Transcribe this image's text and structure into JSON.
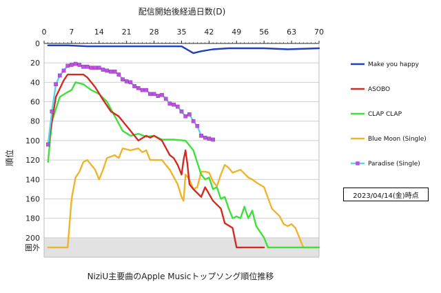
{
  "chart_data": {
    "type": "line",
    "title": "NiziU主要曲のApple Musicトップソング順位推移",
    "xlabel": "配信開始後経過日数(D)",
    "ylabel": "順位",
    "xlim": [
      0,
      70
    ],
    "ylim": [
      0,
      220
    ],
    "x_ticks": [
      "0",
      "7",
      "14",
      "21",
      "28",
      "35",
      "42",
      "49",
      "56",
      "63",
      "70"
    ],
    "y_ticks": [
      "0",
      "20",
      "40",
      "60",
      "80",
      "100",
      "120",
      "140",
      "160",
      "180",
      "200"
    ],
    "y_outside_label": "圏外",
    "y_outside_value": 210,
    "y_inverted": true,
    "x_axis_position": "top",
    "legend_position": "right",
    "series": [
      {
        "name": "Make you happy",
        "color": "#1f3fbf",
        "marker": "none",
        "x": [
          1,
          6,
          11,
          35,
          38,
          40,
          43,
          47,
          52,
          56,
          62,
          70
        ],
        "y": [
          2,
          2,
          3,
          3,
          10,
          8,
          6,
          5,
          5,
          5,
          6,
          5
        ]
      },
      {
        "name": "ASOBO",
        "color": "#d42a22",
        "marker": "none",
        "x": [
          1,
          3,
          5,
          6,
          10,
          11,
          13,
          15,
          17,
          19,
          21,
          22,
          24,
          26,
          27,
          28,
          30,
          32,
          33,
          34,
          35,
          35.5,
          36,
          36.5,
          37,
          38,
          40,
          41,
          43,
          45,
          46,
          48,
          49,
          50,
          56
        ],
        "y": [
          105,
          55,
          38,
          32,
          32,
          35,
          45,
          58,
          70,
          75,
          85,
          90,
          100,
          95,
          97,
          95,
          100,
          115,
          118,
          125,
          135,
          120,
          110,
          125,
          145,
          150,
          158,
          148,
          162,
          170,
          185,
          190,
          210,
          210,
          210
        ]
      },
      {
        "name": "CLAP CLAP",
        "color": "#3ee03a",
        "marker": "none",
        "x": [
          1,
          2,
          4,
          6,
          7,
          8,
          10,
          12,
          14,
          16,
          18,
          20,
          22,
          24,
          26,
          28,
          30,
          33,
          36,
          38,
          40,
          41,
          42,
          43,
          44,
          45,
          46,
          47,
          48,
          49,
          50,
          51,
          52,
          53,
          54,
          56,
          57,
          70
        ],
        "y": [
          122,
          80,
          55,
          50,
          48,
          40,
          42,
          48,
          52,
          60,
          75,
          90,
          95,
          93,
          96,
          95,
          99,
          99,
          100,
          110,
          135,
          140,
          138,
          150,
          148,
          160,
          158,
          170,
          180,
          178,
          180,
          168,
          180,
          172,
          188,
          200,
          210,
          210
        ]
      },
      {
        "name": "Blue Moon (Single)",
        "color": "#f0b429",
        "marker": "none",
        "x": [
          1,
          6,
          7,
          8,
          9,
          10,
          11,
          12,
          13,
          14,
          15,
          16,
          18,
          19,
          20,
          22,
          24,
          25,
          26,
          27,
          30,
          32,
          34,
          35,
          35.5,
          36,
          37,
          38,
          39,
          40,
          41,
          42,
          43,
          44,
          45,
          46,
          47,
          48,
          50,
          52,
          53,
          54,
          56,
          58,
          59,
          60,
          61,
          62,
          63,
          64,
          65,
          66,
          67,
          68,
          70
        ],
        "y": [
          210,
          210,
          160,
          138,
          132,
          122,
          120,
          125,
          130,
          140,
          130,
          118,
          115,
          118,
          108,
          110,
          108,
          112,
          110,
          120,
          120,
          130,
          145,
          158,
          162,
          135,
          140,
          150,
          148,
          132,
          132,
          133,
          142,
          147,
          135,
          125,
          128,
          133,
          130,
          138,
          140,
          143,
          148,
          170,
          174,
          178,
          186,
          188,
          186,
          190,
          200,
          210,
          210,
          210,
          210
        ]
      },
      {
        "name": "Paradise (Single)",
        "color": "#55d6f0",
        "marker": "square",
        "marker_color": "#c050e0",
        "x": [
          1,
          2,
          3,
          4,
          5,
          6,
          7,
          8,
          9,
          10,
          11,
          12,
          13,
          14,
          15,
          16,
          17,
          18,
          19,
          20,
          21,
          22,
          23,
          24,
          25,
          26,
          27,
          28,
          29,
          30,
          31,
          32,
          33,
          34,
          35,
          36,
          37,
          38,
          39,
          40,
          41,
          42,
          43
        ],
        "y": [
          104,
          70,
          42,
          33,
          28,
          23,
          22,
          21,
          22,
          24,
          24,
          25,
          25,
          25,
          27,
          28,
          29,
          29,
          32,
          37,
          39,
          40,
          44,
          46,
          48,
          48,
          52,
          52,
          54,
          53,
          57,
          62,
          63,
          65,
          70,
          75,
          73,
          80,
          85,
          95,
          97,
          98,
          99
        ]
      }
    ]
  },
  "as_of_label": "2023/04/14(金)時点"
}
